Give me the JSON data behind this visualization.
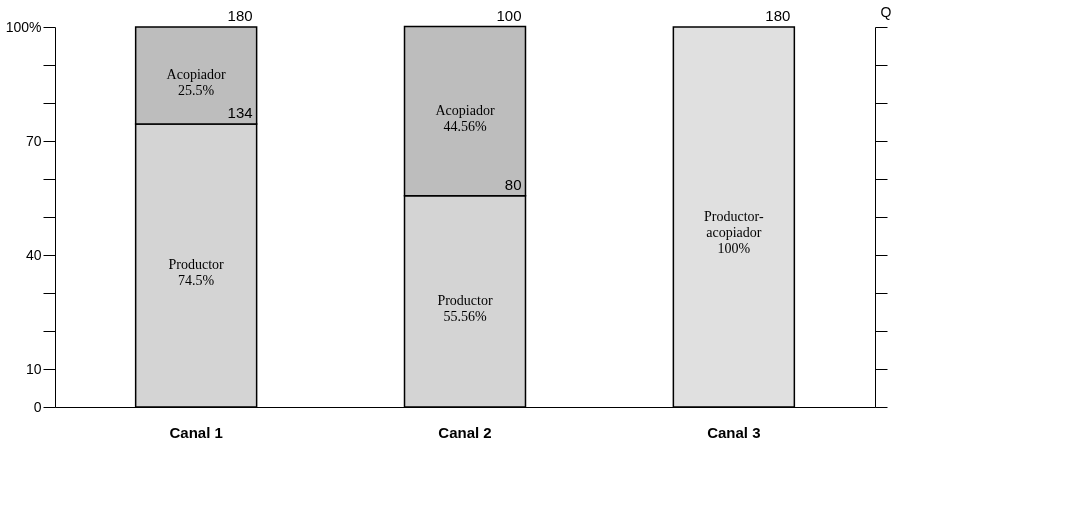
{
  "chart_data": {
    "type": "bar",
    "stacked": true,
    "categories": [
      "Canal 1",
      "Canal 2",
      "Canal 3"
    ],
    "series": [
      {
        "name": "Productor",
        "color": "#d4d4d4",
        "values": [
          74.5,
          55.56,
          null
        ],
        "value_labels": [
          "74.5%",
          "55.56%",
          null
        ]
      },
      {
        "name": "Acopiador",
        "color": "#bdbdbd",
        "values": [
          25.5,
          44.56,
          null
        ],
        "value_labels": [
          "25.5%",
          "44.56%",
          null
        ]
      },
      {
        "name": "Productor-acopiador",
        "color": "#e0e0e0",
        "values": [
          null,
          null,
          100
        ],
        "value_labels": [
          null,
          null,
          "100%"
        ]
      }
    ],
    "ylim": [
      0,
      100
    ],
    "yticks": [
      0,
      10,
      {
        "value": 20,
        "label": null
      },
      {
        "value": 30,
        "label": null
      },
      40,
      {
        "value": 50,
        "label": null
      },
      {
        "value": 60,
        "label": null
      },
      70,
      {
        "value": 80,
        "label": null
      },
      {
        "value": 90,
        "label": null
      },
      {
        "value": 100,
        "label": "100%"
      }
    ],
    "y2label": "Q",
    "annotations": [
      {
        "text": "180",
        "x": "Canal 1",
        "y": 100
      },
      {
        "text": "134",
        "x": "Canal 1",
        "y": 74.5
      },
      {
        "text": "100",
        "x": "Canal 2",
        "y": 100
      },
      {
        "text": "80",
        "x": "Canal 2",
        "y": 55.56
      },
      {
        "text": "180",
        "x": "Canal 3",
        "y": 100
      }
    ],
    "grid": false,
    "legend": false
  }
}
